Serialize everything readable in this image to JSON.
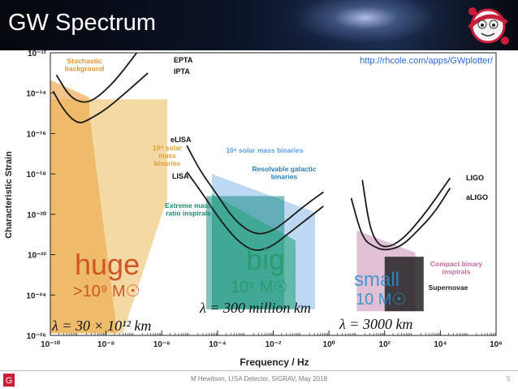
{
  "slide": {
    "title": "GW Spectrum",
    "footer": "M Hewitson, LISA Detector, SIGRAV, May 2018",
    "page_number": "5"
  },
  "chart_data": {
    "type": "line",
    "title": "",
    "xlabel": "Frequency / Hz",
    "ylabel": "Characteristic Strain",
    "x_scale": "log",
    "y_scale": "log",
    "xlim": [
      1e-10,
      1000000.0
    ],
    "ylim": [
      1e-26,
      1e-12
    ],
    "x_ticks": [
      -10,
      -8,
      -6,
      -4,
      -2,
      0,
      2,
      4,
      6
    ],
    "y_ticks": [
      -12,
      -14,
      -16,
      -18,
      -20,
      -22,
      -24,
      -26
    ],
    "grid": false,
    "url": "http://rhcole.com/apps/GWplotter/",
    "detectors": [
      {
        "name": "EPTA",
        "color": "#1a1a1a",
        "points": [
          [
            -9.78,
            -13.1
          ],
          [
            -9.3,
            -14.2
          ],
          [
            -8.8,
            -14.5
          ],
          [
            -8.4,
            -14.3
          ],
          [
            -7.9,
            -13.7
          ],
          [
            -7.45,
            -13.0
          ],
          [
            -6.9,
            -12.0
          ]
        ]
      },
      {
        "name": "IPTA",
        "color": "#1a1a1a",
        "points": [
          [
            -9.9,
            -13.9
          ],
          [
            -9.5,
            -14.9
          ],
          [
            -9.0,
            -15.55
          ],
          [
            -8.6,
            -15.3
          ],
          [
            -8.0,
            -14.8
          ],
          [
            -7.4,
            -14.1
          ],
          [
            -6.9,
            -13.5
          ],
          [
            -6.5,
            -13.0
          ]
        ]
      },
      {
        "name": "eLISA",
        "color": "#1a1a1a",
        "points": [
          [
            -5.1,
            -16.6
          ],
          [
            -4.6,
            -17.9
          ],
          [
            -4.0,
            -19.05
          ],
          [
            -3.4,
            -20.3
          ],
          [
            -2.7,
            -21.0
          ],
          [
            -2.1,
            -20.9
          ],
          [
            -1.5,
            -20.3
          ],
          [
            -0.9,
            -19.6
          ],
          [
            -0.2,
            -18.9
          ]
        ]
      },
      {
        "name": "LISA",
        "color": "#1a1a1a",
        "points": [
          [
            -5.1,
            -17.9
          ],
          [
            -4.5,
            -19.05
          ],
          [
            -3.9,
            -20.3
          ],
          [
            -3.3,
            -21.3
          ],
          [
            -2.7,
            -21.85
          ],
          [
            -2.1,
            -21.65
          ],
          [
            -1.5,
            -21.0
          ],
          [
            -0.8,
            -20.25
          ],
          [
            -0.2,
            -19.6
          ]
        ]
      },
      {
        "name": "LIGO",
        "color": "#1a1a1a",
        "points": [
          [
            1.2,
            -18.3
          ],
          [
            1.45,
            -20.6
          ],
          [
            1.75,
            -21.5
          ],
          [
            2.1,
            -21.65
          ],
          [
            2.6,
            -21.3
          ],
          [
            3.2,
            -20.4
          ],
          [
            3.8,
            -19.3
          ],
          [
            4.35,
            -18.2
          ]
        ]
      },
      {
        "name": "aLIGO",
        "color": "#1a1a1a",
        "points": [
          [
            0.8,
            -19.2
          ],
          [
            1.2,
            -21.2
          ],
          [
            1.6,
            -21.6
          ],
          [
            2.0,
            -21.8
          ],
          [
            2.6,
            -21.6
          ],
          [
            3.2,
            -20.8
          ],
          [
            3.8,
            -19.9
          ],
          [
            4.35,
            -18.7
          ]
        ]
      }
    ],
    "sources": [
      {
        "name": "Stochastic background",
        "label_lines": [
          "Stochastic",
          "background"
        ],
        "color": "#e8922a",
        "opacity": 0.55,
        "polygon": [
          [
            -10.0,
            -13.35
          ],
          [
            -8.6,
            -14.2
          ],
          [
            -8.6,
            -15.0
          ],
          [
            -7.6,
            -25.9
          ],
          [
            -10.0,
            -25.9
          ]
        ]
      },
      {
        "name": "10^9 solar mass binaries",
        "label_lines": [
          "10⁹ solar",
          "mass",
          "binaries"
        ],
        "color": "#eab34a",
        "opacity": 0.5,
        "polygon": [
          [
            -10.0,
            -14.3
          ],
          [
            -5.8,
            -14.3
          ],
          [
            -5.8,
            -19.2
          ],
          [
            -7.4,
            -25.9
          ],
          [
            -10.0,
            -25.9
          ]
        ]
      },
      {
        "name": "10^6 solar mass binaries",
        "label_lines": [
          "10⁶ solar mass binaries"
        ],
        "color": "#7bb4e4",
        "opacity": 0.5,
        "polygon": [
          [
            -4.2,
            -18.0
          ],
          [
            -0.5,
            -19.9
          ],
          [
            -0.5,
            -24.7
          ],
          [
            -4.2,
            -24.7
          ]
        ]
      },
      {
        "name": "Resolvable galactic binaries",
        "label_lines": [
          "Resolvable galactic",
          "binaries"
        ],
        "color": "#1a8a8a",
        "opacity": 0.55,
        "polygon": [
          [
            -4.4,
            -19.1
          ],
          [
            -1.6,
            -19.1
          ],
          [
            -1.6,
            -24.7
          ],
          [
            -4.4,
            -24.7
          ]
        ]
      },
      {
        "name": "Extreme mass ratio inspirals",
        "label_lines": [
          "Extreme mass",
          "ratio inspirals"
        ],
        "color": "#2aa47c",
        "opacity": 0.6,
        "polygon": [
          [
            -4.2,
            -19.0
          ],
          [
            -1.2,
            -21.3
          ],
          [
            -1.2,
            -24.7
          ],
          [
            -4.2,
            -24.7
          ]
        ]
      },
      {
        "name": "Compact binary inspirals",
        "label_lines": [
          "Compact binary",
          "inspirals"
        ],
        "color": "#c98ab1",
        "opacity": 0.55,
        "polygon": [
          [
            1.0,
            -20.8
          ],
          [
            3.1,
            -21.9
          ],
          [
            3.1,
            -24.8
          ],
          [
            1.0,
            -24.8
          ]
        ]
      },
      {
        "name": "Supernovae",
        "label_lines": [
          "Supernovae"
        ],
        "color": "#222222",
        "opacity": 0.85,
        "polygon": [
          [
            2.0,
            -22.1
          ],
          [
            3.4,
            -22.1
          ],
          [
            3.4,
            -24.8
          ],
          [
            2.0,
            -24.8
          ]
        ]
      }
    ],
    "annotations": {
      "huge": {
        "word": "huge",
        "mass": ">10⁹ M☉",
        "wavelength": "λ = 30 × 10¹² km",
        "color": "#cc4a1a"
      },
      "big": {
        "word": "big",
        "mass": "10⁶ M☉",
        "wavelength": "λ = 300 million km",
        "color": "#2a9a6c"
      },
      "small": {
        "word": "small",
        "mass": "10 M☉",
        "wavelength": "λ = 3000 km",
        "color": "#2a8fd0"
      }
    }
  }
}
